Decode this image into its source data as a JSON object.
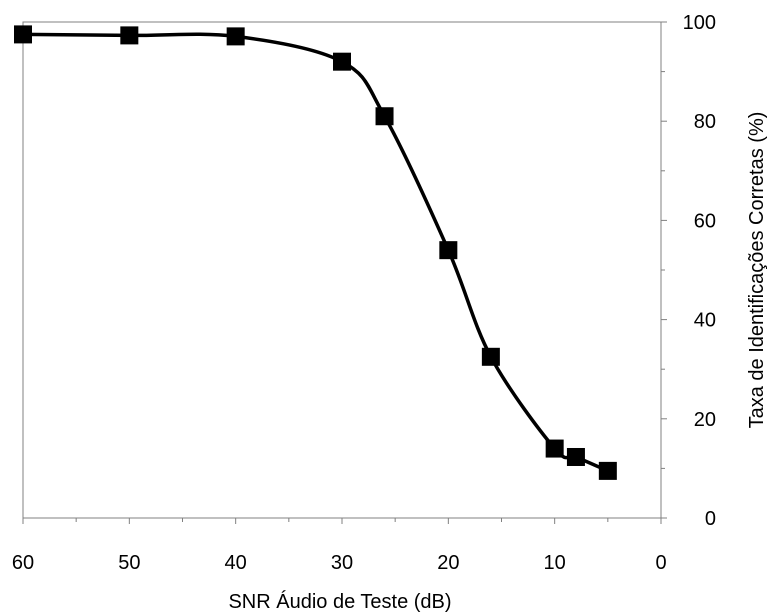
{
  "chart_data": {
    "type": "line",
    "title": "",
    "xlabel": "SNR Áudio de Teste (dB)",
    "ylabel": "Taxa de Identificações Corretas (%)",
    "x_reversed": true,
    "xlim": [
      60,
      0
    ],
    "ylim": [
      0,
      100
    ],
    "x_ticks": [
      60,
      50,
      40,
      30,
      20,
      10,
      0
    ],
    "x_minor_step": 5,
    "y_ticks": [
      0,
      20,
      40,
      60,
      80,
      100
    ],
    "y_minor_step": 10,
    "y_axis_side": "right",
    "grid": false,
    "legend": "none",
    "line_color": "#000000",
    "marker": "square",
    "series": [
      {
        "x": [
          60,
          50,
          40,
          30,
          26,
          20,
          16,
          10,
          8,
          5
        ],
        "y": [
          97.5,
          97.3,
          97.1,
          92.0,
          81.0,
          54.0,
          32.5,
          14.0,
          12.3,
          9.5
        ]
      }
    ]
  }
}
